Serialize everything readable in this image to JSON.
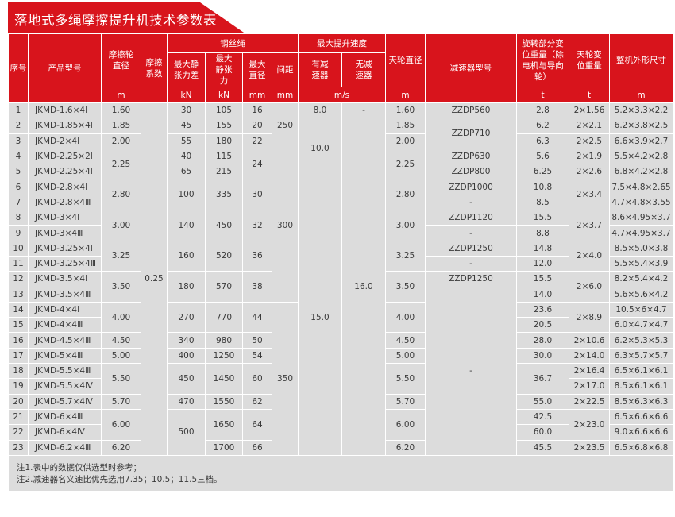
{
  "title": "落地式多绳摩擦提升机技术参数表",
  "colors": {
    "accent": "#d8141c",
    "cell": "#dcdcdc"
  },
  "header": {
    "seq": "序号",
    "model": "产品型号",
    "wheel_dia": "摩擦轮直径",
    "friction": "摩擦系数",
    "rope": "钢丝绳",
    "rope_diff": "最大静张力差",
    "rope_tension": "最大静张力",
    "rope_dia": "最大直径",
    "rope_pitch": "间距",
    "speed": "最大提升速度",
    "speed_with": "有减速器",
    "speed_without": "无减速器",
    "sheave_dia": "天轮直径",
    "reducer": "减速器型号",
    "rot_weight": "旋转部分变位重量（除电机与导向轮）",
    "sheave_weight": "天轮变位重量",
    "dims": "整机外形尺寸"
  },
  "units": {
    "wheel_dia": "m",
    "rope_diff": "kN",
    "rope_tension": "kN",
    "rope_dia": "mm",
    "rope_pitch": "mm",
    "speed": "m/s",
    "sheave_dia": "m",
    "rot_weight": "t",
    "sheave_weight": "t",
    "dims": "m"
  },
  "table": {
    "rows": [
      [
        "1",
        "JKMD-1.6×4Ⅰ",
        "1.60",
        {
          "v": "0.25",
          "rows": 23
        },
        "30",
        "105",
        "16",
        {
          "v": "250",
          "rows": 3
        },
        "8.0",
        "-",
        "1.60",
        "ZZDP560",
        "2.8",
        "2×1.56",
        "5.2×3.3×2.2"
      ],
      [
        "2",
        "JKMD-1.85×4Ⅰ",
        "1.85",
        null,
        "45",
        "155",
        "20",
        null,
        {
          "v": "10.0",
          "rows": 4
        },
        {
          "v": "16.0",
          "rows": 22
        },
        "1.85",
        {
          "v": "ZZDP710",
          "rows": 2
        },
        "6.2",
        "2×2.1",
        "6.2×3.8×2.5"
      ],
      [
        "3",
        "JKMD-2×4Ⅰ",
        "2.00",
        null,
        "55",
        "180",
        "22",
        null,
        null,
        null,
        "2.00",
        null,
        "6.3",
        "2×2.5",
        "6.6×3.9×2.7"
      ],
      [
        "4",
        "JKMD-2.25×2Ⅰ",
        {
          "v": "2.25",
          "rows": 2
        },
        null,
        "40",
        "115",
        {
          "v": "24",
          "rows": 2
        },
        {
          "v": "300",
          "rows": 10
        },
        null,
        null,
        {
          "v": "2.25",
          "rows": 2
        },
        "ZZDP630",
        "5.6",
        "2×1.9",
        "5.5×4.2×2.8"
      ],
      [
        "5",
        "JKMD-2.25×4Ⅰ",
        null,
        null,
        "65",
        "215",
        null,
        null,
        null,
        null,
        null,
        "ZZDP800",
        "6.25",
        "2×2.6",
        "6.8×4.2×2.8"
      ],
      [
        "6",
        "JKMD-2.8×4Ⅰ",
        {
          "v": "2.80",
          "rows": 2
        },
        null,
        {
          "v": "100",
          "rows": 2
        },
        {
          "v": "335",
          "rows": 2
        },
        {
          "v": "30",
          "rows": 2
        },
        null,
        {
          "v": "15.0",
          "rows": 18
        },
        null,
        {
          "v": "2.80",
          "rows": 2
        },
        "ZZDP1000",
        "10.8",
        {
          "v": "2×3.4",
          "rows": 2
        },
        "7.5×4.8×2.65"
      ],
      [
        "7",
        "JKMD-2.8×4Ⅲ",
        null,
        null,
        null,
        null,
        null,
        null,
        null,
        null,
        null,
        "-",
        "8.5",
        null,
        "4.7×4.8×3.55"
      ],
      [
        "8",
        "JKMD-3×4Ⅰ",
        {
          "v": "3.00",
          "rows": 2
        },
        null,
        {
          "v": "140",
          "rows": 2
        },
        {
          "v": "450",
          "rows": 2
        },
        {
          "v": "32",
          "rows": 2
        },
        null,
        null,
        null,
        {
          "v": "3.00",
          "rows": 2
        },
        "ZZDP1120",
        "15.5",
        {
          "v": "2×3.7",
          "rows": 2
        },
        "8.6×4.95×3.7"
      ],
      [
        "9",
        "JKMD-3×4Ⅲ",
        null,
        null,
        null,
        null,
        null,
        null,
        null,
        null,
        null,
        "-",
        "8.8",
        null,
        "4.7×4.95×3.7"
      ],
      [
        "10",
        "JKMD-3.25×4Ⅰ",
        {
          "v": "3.25",
          "rows": 2
        },
        null,
        {
          "v": "160",
          "rows": 2
        },
        {
          "v": "520",
          "rows": 2
        },
        {
          "v": "36",
          "rows": 2
        },
        null,
        null,
        null,
        {
          "v": "3.25",
          "rows": 2
        },
        "ZZDP1250",
        "14.8",
        {
          "v": "2×4.0",
          "rows": 2
        },
        "8.5×5.0×3.8"
      ],
      [
        "11",
        "JKMD-3.25×4Ⅲ",
        null,
        null,
        null,
        null,
        null,
        null,
        null,
        null,
        null,
        "-",
        "12.0",
        null,
        "5.5×5.4×3.9"
      ],
      [
        "12",
        "JKMD-3.5×4Ⅰ",
        {
          "v": "3.50",
          "rows": 2
        },
        null,
        {
          "v": "180",
          "rows": 2
        },
        {
          "v": "570",
          "rows": 2
        },
        {
          "v": "38",
          "rows": 2
        },
        null,
        null,
        null,
        {
          "v": "3.50",
          "rows": 2
        },
        "ZZDP1250",
        "15.5",
        {
          "v": "2×6.0",
          "rows": 2
        },
        "8.2×5.4×4.2"
      ],
      [
        "13",
        "JKMD-3.5×4Ⅲ",
        null,
        null,
        null,
        null,
        null,
        null,
        null,
        null,
        null,
        {
          "v": "-",
          "rows": 11
        },
        "14.0",
        null,
        "5.6×5.6×4.2"
      ],
      [
        "14",
        "JKMD-4×4Ⅰ",
        {
          "v": "4.00",
          "rows": 2
        },
        null,
        {
          "v": "270",
          "rows": 2
        },
        {
          "v": "770",
          "rows": 2
        },
        {
          "v": "44",
          "rows": 2
        },
        {
          "v": "350",
          "rows": 10
        },
        null,
        null,
        {
          "v": "4.00",
          "rows": 2
        },
        null,
        "23.6",
        {
          "v": "2×8.9",
          "rows": 2
        },
        "10.5×6×4.7"
      ],
      [
        "15",
        "JKMD-4×4Ⅲ",
        null,
        null,
        null,
        null,
        null,
        null,
        null,
        null,
        null,
        null,
        "20.5",
        null,
        "6.0×4.7×4.7"
      ],
      [
        "16",
        "JKMD-4.5×4Ⅲ",
        "4.50",
        null,
        "340",
        "980",
        "50",
        null,
        null,
        null,
        "4.50",
        null,
        "28.0",
        "2×10.6",
        "6.2×5.3×5.3"
      ],
      [
        "17",
        "JKMD-5×4Ⅲ",
        "5.00",
        null,
        "400",
        "1250",
        "54",
        null,
        null,
        null,
        "5.00",
        null,
        "30.0",
        "2×14.0",
        "6.3×5.7×5.7"
      ],
      [
        "18",
        "JKMD-5.5×4Ⅲ",
        {
          "v": "5.50",
          "rows": 2
        },
        null,
        {
          "v": "450",
          "rows": 2
        },
        {
          "v": "1450",
          "rows": 2
        },
        {
          "v": "60",
          "rows": 2
        },
        null,
        null,
        null,
        {
          "v": "5.50",
          "rows": 2
        },
        null,
        {
          "v": "36.7",
          "rows": 2
        },
        "2×16.4",
        "6.5×6.1×6.1"
      ],
      [
        "19",
        "JKMD-5.5×4Ⅳ",
        null,
        null,
        null,
        null,
        null,
        null,
        null,
        null,
        null,
        null,
        null,
        "2×17.0",
        "8.5×6.1×6.1"
      ],
      [
        "20",
        "JKMD-5.7×4Ⅳ",
        "5.70",
        null,
        "470",
        "1550",
        "62",
        null,
        null,
        null,
        "5.70",
        null,
        "55.0",
        "2×22.5",
        "8.5×6.3×6.3"
      ],
      [
        "21",
        "JKMD-6×4Ⅲ",
        {
          "v": "6.00",
          "rows": 2
        },
        null,
        {
          "v": "500",
          "rows": 3
        },
        {
          "v": "1650",
          "rows": 2
        },
        {
          "v": "64",
          "rows": 2
        },
        null,
        null,
        null,
        {
          "v": "6.00",
          "rows": 2
        },
        null,
        "42.5",
        {
          "v": "2×23.0",
          "rows": 2
        },
        "6.5×6.6×6.6"
      ],
      [
        "22",
        "JKMD-6×4Ⅳ",
        null,
        null,
        null,
        null,
        null,
        null,
        null,
        null,
        null,
        null,
        "60.0",
        null,
        "9.0×6.6×6.6"
      ],
      [
        "23",
        "JKMD-6.2×4Ⅲ",
        "6.20",
        null,
        null,
        "1700",
        "66",
        null,
        null,
        null,
        "6.20",
        null,
        "45.5",
        "2×23.5",
        "6.5×6.8×6.8"
      ]
    ]
  },
  "notes": [
    "注1.表中的数据仅供选型时参考；",
    "注2.减速器名义速比优先选用7.35；10.5；11.5三档。"
  ]
}
